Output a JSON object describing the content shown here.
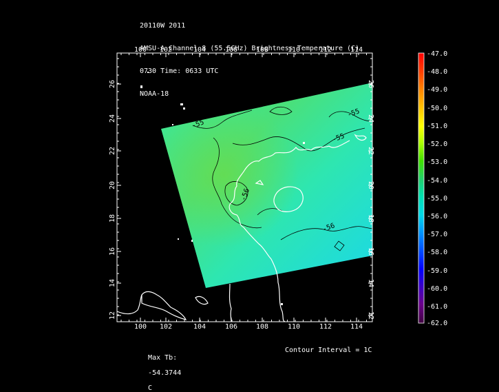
{
  "header": {
    "line1": "20110W 2011",
    "line2": "AMSU-A Channel 8 (55.5GHz) Brightness Temperature (C)",
    "line3": "0730 Time: 0633 UTC",
    "line4": "NOAA-18"
  },
  "footer": {
    "max_tb_label": "Max Tb:",
    "max_tb_value": "-54.3744",
    "max_tb_unit": "C",
    "contour_interval": "Contour Interval = 1C"
  },
  "map": {
    "lon_ticks": [
      "100",
      "102",
      "104",
      "106",
      "108",
      "110",
      "112",
      "114"
    ],
    "lat_ticks": [
      "12",
      "14",
      "16",
      "18",
      "20",
      "22",
      "24",
      "26"
    ],
    "contour_labels": [
      "-55",
      "-55",
      "-55",
      "-56",
      "-56"
    ],
    "colors": {
      "background": "#000000",
      "coastline": "#ffffff",
      "contour": "#000000",
      "swath_dominant": "#33e0a0"
    }
  },
  "colorbar": {
    "labels": [
      "-47.0",
      "-48.0",
      "-49.0",
      "-50.0",
      "-51.0",
      "-52.0",
      "-53.0",
      "-54.0",
      "-55.0",
      "-56.0",
      "-57.0",
      "-58.0",
      "-59.0",
      "-60.0",
      "-61.0",
      "-62.0"
    ],
    "colors": [
      "#ff0000",
      "#ff4000",
      "#ff8000",
      "#ffc000",
      "#ffff00",
      "#c0ff00",
      "#40e000",
      "#20d060",
      "#00e0a0",
      "#00e0e0",
      "#00a0ff",
      "#0060ff",
      "#0000ff",
      "#4000c0",
      "#6a008a",
      "#400050"
    ]
  }
}
